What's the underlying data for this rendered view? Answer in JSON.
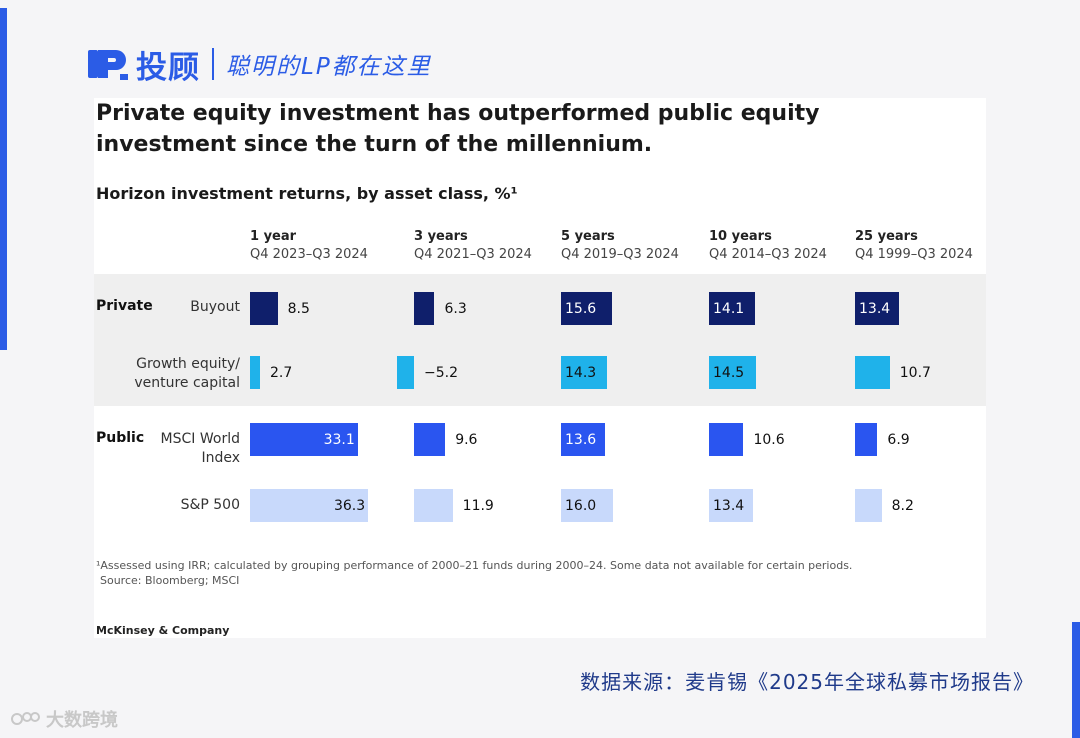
{
  "header": {
    "brand": "投顾",
    "slogan": "聪明的LP都在这里"
  },
  "chart_data": {
    "type": "bar",
    "title": "Private equity investment has outperformed public equity investment since the turn of the millennium.",
    "subtitle": "Horizon investment returns, by asset class, %¹",
    "horizons": [
      {
        "name": "1 year",
        "period": "Q4 2023–Q3 2024"
      },
      {
        "name": "3 years",
        "period": "Q4 2021–Q3 2024"
      },
      {
        "name": "5 years",
        "period": "Q4 2019–Q3 2024"
      },
      {
        "name": "10 years",
        "period": "Q4 2014–Q3 2024"
      },
      {
        "name": "25 years",
        "period": "Q4 1999–Q3 2024"
      }
    ],
    "groups": [
      {
        "label": "Private"
      },
      {
        "label": "Public"
      }
    ],
    "series": [
      {
        "name": "Buyout",
        "group": "Private",
        "color": "#0f1f6b",
        "values": [
          "8.5",
          "6.3",
          "15.6",
          "14.1",
          "13.4"
        ]
      },
      {
        "name": "Growth equity/\nventure capital",
        "group": "Private",
        "color": "#1fb2ea",
        "values": [
          "2.7",
          "−5.2",
          "14.3",
          "14.5",
          "10.7"
        ]
      },
      {
        "name": "MSCI World\nIndex",
        "group": "Public",
        "color": "#2a55f0",
        "values": [
          "33.1",
          "9.6",
          "13.6",
          "10.6",
          "6.9"
        ]
      },
      {
        "name": "S&P 500",
        "group": "Public",
        "color": "#c8d9fb",
        "values": [
          "36.3",
          "11.9",
          "16.0",
          "13.4",
          "8.2"
        ]
      }
    ],
    "footnote": "¹Assessed using IRR; calculated by grouping performance of 2000–21 funds during 2000–24. Some data not available for certain periods.",
    "source": "Source: Bloomberg; MSCI",
    "brand": "McKinsey & Company"
  },
  "footer": {
    "source_cn": "数据来源：麦肯锡《2025年全球私募市场报告》",
    "watermark": "大数跨境"
  }
}
